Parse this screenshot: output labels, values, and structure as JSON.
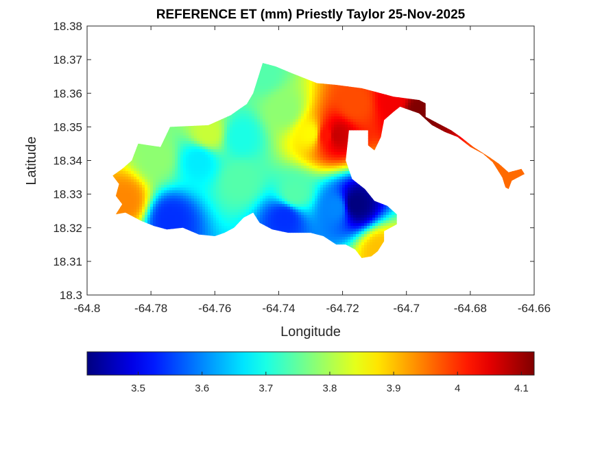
{
  "chart_data": {
    "type": "heatmap",
    "title": "REFERENCE ET (mm) Priestly Taylor 25-Nov-2025",
    "xlabel": "Longitude",
    "ylabel": "Latitude",
    "xlim": [
      -64.8,
      -64.66
    ],
    "ylim": [
      18.3,
      18.38
    ],
    "xticks": [
      -64.8,
      -64.78,
      -64.76,
      -64.74,
      -64.72,
      -64.7,
      -64.68,
      -64.66
    ],
    "xtick_labels": [
      "-64.8",
      "-64.78",
      "-64.76",
      "-64.74",
      "-64.72",
      "-64.7",
      "-64.68",
      "-64.66"
    ],
    "yticks": [
      18.3,
      18.31,
      18.32,
      18.33,
      18.34,
      18.35,
      18.36,
      18.37,
      18.38
    ],
    "ytick_labels": [
      "18.3",
      "18.31",
      "18.32",
      "18.33",
      "18.34",
      "18.35",
      "18.36",
      "18.37",
      "18.38"
    ],
    "colormap": "jet",
    "clim": [
      3.42,
      4.12
    ],
    "colorbar": {
      "location": "bottom",
      "ticks": [
        3.5,
        3.6,
        3.7,
        3.8,
        3.9,
        4.0,
        4.1
      ],
      "tick_labels": [
        "3.5",
        "3.6",
        "3.7",
        "3.8",
        "3.9",
        "4",
        "4.1"
      ]
    },
    "grid": false,
    "island_outline": [
      [
        -64.792,
        18.3355
      ],
      [
        -64.789,
        18.3375
      ],
      [
        -64.786,
        18.34
      ],
      [
        -64.784,
        18.345
      ],
      [
        -64.777,
        18.344
      ],
      [
        -64.774,
        18.35
      ],
      [
        -64.762,
        18.3505
      ],
      [
        -64.755,
        18.3535
      ],
      [
        -64.752,
        18.3555
      ],
      [
        -64.75,
        18.3568
      ],
      [
        -64.748,
        18.36
      ],
      [
        -64.745,
        18.369
      ],
      [
        -64.741,
        18.368
      ],
      [
        -64.736,
        18.366
      ],
      [
        -64.732,
        18.3645
      ],
      [
        -64.728,
        18.363
      ],
      [
        -64.722,
        18.3625
      ],
      [
        -64.714,
        18.3615
      ],
      [
        -64.71,
        18.3605
      ],
      [
        -64.704,
        18.359
      ],
      [
        -64.696,
        18.358
      ],
      [
        -64.694,
        18.357
      ],
      [
        -64.694,
        18.353
      ],
      [
        -64.69,
        18.351
      ],
      [
        -64.686,
        18.349
      ],
      [
        -64.683,
        18.347
      ],
      [
        -64.679,
        18.344
      ],
      [
        -64.674,
        18.341
      ],
      [
        -64.671,
        18.339
      ],
      [
        -64.668,
        18.3365
      ],
      [
        -64.664,
        18.3375
      ],
      [
        -64.663,
        18.336
      ],
      [
        -64.667,
        18.334
      ],
      [
        -64.668,
        18.3315
      ],
      [
        -64.669,
        18.332
      ],
      [
        -64.67,
        18.335
      ],
      [
        -64.673,
        18.3395
      ],
      [
        -64.676,
        18.342
      ],
      [
        -64.68,
        18.344
      ],
      [
        -64.684,
        18.347
      ],
      [
        -64.688,
        18.3485
      ],
      [
        -64.692,
        18.3505
      ],
      [
        -64.696,
        18.354
      ],
      [
        -64.702,
        18.356
      ],
      [
        -64.704,
        18.3545
      ],
      [
        -64.707,
        18.352
      ],
      [
        -64.708,
        18.347
      ],
      [
        -64.71,
        18.343
      ],
      [
        -64.712,
        18.3445
      ],
      [
        -64.712,
        18.349
      ],
      [
        -64.718,
        18.349
      ],
      [
        -64.719,
        18.34
      ],
      [
        -64.717,
        18.3345
      ],
      [
        -64.713,
        18.3315
      ],
      [
        -64.71,
        18.328
      ],
      [
        -64.706,
        18.3265
      ],
      [
        -64.703,
        18.324
      ],
      [
        -64.703,
        18.321
      ],
      [
        -64.707,
        18.319
      ],
      [
        -64.707,
        18.316
      ],
      [
        -64.709,
        18.313
      ],
      [
        -64.711,
        18.3115
      ],
      [
        -64.714,
        18.311
      ],
      [
        -64.716,
        18.3135
      ],
      [
        -64.719,
        18.315
      ],
      [
        -64.722,
        18.315
      ],
      [
        -64.726,
        18.3175
      ],
      [
        -64.73,
        18.3185
      ],
      [
        -64.737,
        18.3185
      ],
      [
        -64.742,
        18.3195
      ],
      [
        -64.746,
        18.3215
      ],
      [
        -64.748,
        18.3245
      ],
      [
        -64.751,
        18.323
      ],
      [
        -64.754,
        18.32
      ],
      [
        -64.757,
        18.3185
      ],
      [
        -64.76,
        18.3175
      ],
      [
        -64.765,
        18.318
      ],
      [
        -64.77,
        18.32
      ],
      [
        -64.775,
        18.3195
      ],
      [
        -64.779,
        18.3205
      ],
      [
        -64.783,
        18.322
      ],
      [
        -64.788,
        18.3245
      ],
      [
        -64.791,
        18.324
      ],
      [
        -64.789,
        18.327
      ],
      [
        -64.791,
        18.3295
      ],
      [
        -64.79,
        18.333
      ]
    ],
    "field_values": [
      [
        -64.716,
        18.327,
        3.42
      ],
      [
        -64.722,
        18.326,
        3.6
      ],
      [
        -64.738,
        18.323,
        3.54
      ],
      [
        -64.774,
        18.3225,
        3.54
      ],
      [
        -64.752,
        18.334,
        3.74
      ],
      [
        -64.765,
        18.34,
        3.67
      ],
      [
        -64.745,
        18.366,
        3.74
      ],
      [
        -64.738,
        18.355,
        3.78
      ],
      [
        -64.725,
        18.3475,
        4.02
      ],
      [
        -64.722,
        18.3475,
        4.07
      ],
      [
        -64.716,
        18.357,
        3.98
      ],
      [
        -64.704,
        18.358,
        4.04
      ],
      [
        -64.696,
        18.3545,
        4.12
      ],
      [
        -64.67,
        18.336,
        3.96
      ],
      [
        -64.788,
        18.328,
        3.94
      ],
      [
        -64.708,
        18.313,
        3.9
      ],
      [
        -64.778,
        18.341,
        3.78
      ],
      [
        -64.762,
        18.348,
        3.82
      ],
      [
        -64.752,
        18.347,
        3.7
      ],
      [
        -64.735,
        18.33,
        3.74
      ],
      [
        -64.73,
        18.348,
        3.86
      ]
    ]
  }
}
